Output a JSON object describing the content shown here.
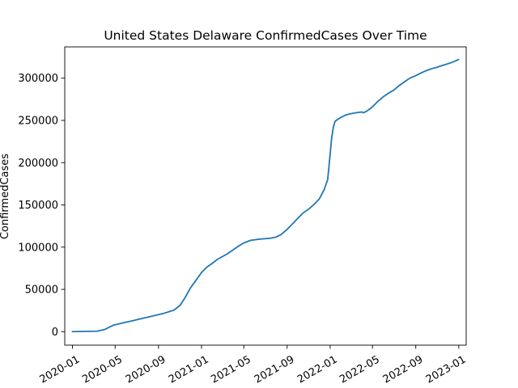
{
  "chart_data": {
    "type": "line",
    "title": "United States Delaware ConfirmedCases Over Time",
    "xlabel": "",
    "ylabel": "ConfirmedCases",
    "xlim": [
      "2019-12-10",
      "2023-01-22"
    ],
    "ylim": [
      -16000,
      337000
    ],
    "grid": false,
    "legend": "none",
    "line_color": "#1f77b4",
    "x_ticks": [
      "2020-01",
      "2020-05",
      "2020-09",
      "2021-01",
      "2021-05",
      "2021-09",
      "2022-01",
      "2022-05",
      "2022-09",
      "2023-01"
    ],
    "y_ticks": [
      0,
      50000,
      100000,
      150000,
      200000,
      250000,
      300000
    ],
    "series": [
      {
        "name": "",
        "x": [
          "2020-01-01",
          "2020-03-10",
          "2020-04-01",
          "2020-04-25",
          "2020-05-25",
          "2020-06-15",
          "2020-07-15",
          "2020-08-15",
          "2020-09-15",
          "2020-10-15",
          "2020-11-01",
          "2020-11-15",
          "2020-12-01",
          "2020-12-15",
          "2021-01-01",
          "2021-01-15",
          "2021-02-01",
          "2021-02-15",
          "2021-03-15",
          "2021-04-15",
          "2021-05-01",
          "2021-05-20",
          "2021-06-15",
          "2021-07-15",
          "2021-08-01",
          "2021-08-15",
          "2021-09-01",
          "2021-09-15",
          "2021-10-01",
          "2021-10-15",
          "2021-11-01",
          "2021-11-15",
          "2021-12-01",
          "2021-12-15",
          "2021-12-25",
          "2022-01-01",
          "2022-01-05",
          "2022-01-10",
          "2022-01-15",
          "2022-01-25",
          "2022-02-05",
          "2022-02-15",
          "2022-03-01",
          "2022-03-15",
          "2022-04-01",
          "2022-04-05",
          "2022-04-15",
          "2022-05-01",
          "2022-05-15",
          "2022-06-01",
          "2022-06-15",
          "2022-07-01",
          "2022-07-15",
          "2022-08-01",
          "2022-08-15",
          "2022-09-01",
          "2022-09-15",
          "2022-10-01",
          "2022-10-15",
          "2022-11-01",
          "2022-11-15",
          "2022-12-01",
          "2022-12-15",
          "2022-12-31"
        ],
        "y": [
          0,
          500,
          2500,
          7500,
          10500,
          12500,
          15500,
          18500,
          21500,
          25500,
          31000,
          40000,
          52000,
          60000,
          70000,
          76000,
          81000,
          85500,
          92000,
          101000,
          105000,
          108000,
          109500,
          110500,
          112000,
          115000,
          121000,
          127000,
          134000,
          140000,
          145000,
          150000,
          157000,
          168000,
          180000,
          210000,
          228000,
          242000,
          249000,
          252000,
          254500,
          256500,
          258000,
          259000,
          260000,
          259000,
          261000,
          266000,
          272000,
          278000,
          282000,
          286000,
          291000,
          296000,
          300000,
          303000,
          306000,
          309000,
          311000,
          313000,
          315000,
          317000,
          319000,
          322000
        ]
      }
    ]
  }
}
